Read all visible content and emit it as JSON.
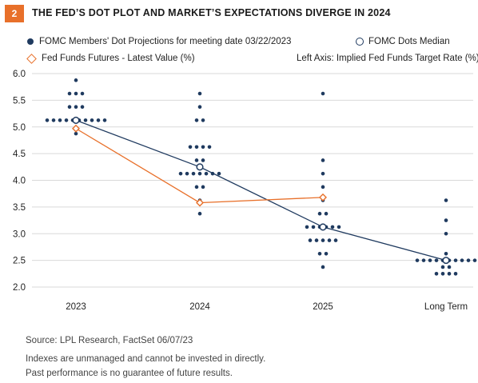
{
  "header": {
    "badge": "2",
    "title": "THE FED’S DOT PLOT AND MARKET’S EXPECTATIONS DIVERGE IN 2024"
  },
  "legend": {
    "dots": "FOMC Members' Dot Projections for meeting date 03/22/2023",
    "median": "FOMC Dots Median",
    "futures": "Fed Funds Futures - Latest Value (%)",
    "axis_note": "Left Axis: Implied Fed Funds Target Rate (%)"
  },
  "footer": {
    "source": "Source: LPL Research, FactSet  06/07/23",
    "disclaimer1": "Indexes are unmanaged and cannot be invested in directly.",
    "disclaimer2": "Past performance is no guarantee of future results."
  },
  "colors": {
    "dots": "#1f3a5f",
    "median": "#1f3a5f",
    "futures": "#e8702a",
    "badge": "#e8702a",
    "grid": "#d9d9d9"
  },
  "chart_data": {
    "type": "scatter",
    "categories": [
      "2023",
      "2024",
      "2025",
      "Long Term"
    ],
    "ylim": [
      2.0,
      6.0
    ],
    "yticks": [
      "6.0",
      "5.5",
      "5.0",
      "4.5",
      "4.0",
      "3.5",
      "3.0",
      "2.5",
      "2.0"
    ],
    "grid": "horizontal",
    "dot_projections": [
      {
        "category": "2023",
        "values": [
          {
            "y": 5.875,
            "count": 1
          },
          {
            "y": 5.625,
            "count": 3
          },
          {
            "y": 5.375,
            "count": 3
          },
          {
            "y": 5.125,
            "count": 10
          },
          {
            "y": 4.875,
            "count": 1
          }
        ]
      },
      {
        "category": "2024",
        "values": [
          {
            "y": 5.625,
            "count": 1
          },
          {
            "y": 5.375,
            "count": 1
          },
          {
            "y": 5.125,
            "count": 2
          },
          {
            "y": 4.625,
            "count": 4
          },
          {
            "y": 4.375,
            "count": 2
          },
          {
            "y": 4.125,
            "count": 7
          },
          {
            "y": 3.875,
            "count": 2
          },
          {
            "y": 3.625,
            "count": 1
          },
          {
            "y": 3.375,
            "count": 1
          }
        ]
      },
      {
        "category": "2025",
        "values": [
          {
            "y": 5.625,
            "count": 1
          },
          {
            "y": 4.375,
            "count": 1
          },
          {
            "y": 4.125,
            "count": 1
          },
          {
            "y": 3.875,
            "count": 1
          },
          {
            "y": 3.625,
            "count": 1
          },
          {
            "y": 3.375,
            "count": 2
          },
          {
            "y": 3.125,
            "count": 6
          },
          {
            "y": 2.875,
            "count": 5
          },
          {
            "y": 2.625,
            "count": 2
          },
          {
            "y": 2.375,
            "count": 1
          }
        ]
      },
      {
        "category": "Long Term",
        "values": [
          {
            "y": 3.625,
            "count": 1
          },
          {
            "y": 3.25,
            "count": 1
          },
          {
            "y": 3.0,
            "count": 1
          },
          {
            "y": 2.625,
            "count": 1
          },
          {
            "y": 2.5,
            "count": 10
          },
          {
            "y": 2.375,
            "count": 2
          },
          {
            "y": 2.25,
            "count": 4
          }
        ]
      }
    ],
    "series": [
      {
        "name": "FOMC Dots Median",
        "values": [
          5.125,
          4.25,
          3.125,
          2.5
        ]
      },
      {
        "name": "Fed Funds Futures - Latest Value (%)",
        "values": [
          4.97,
          3.58,
          3.68,
          null
        ]
      }
    ]
  }
}
